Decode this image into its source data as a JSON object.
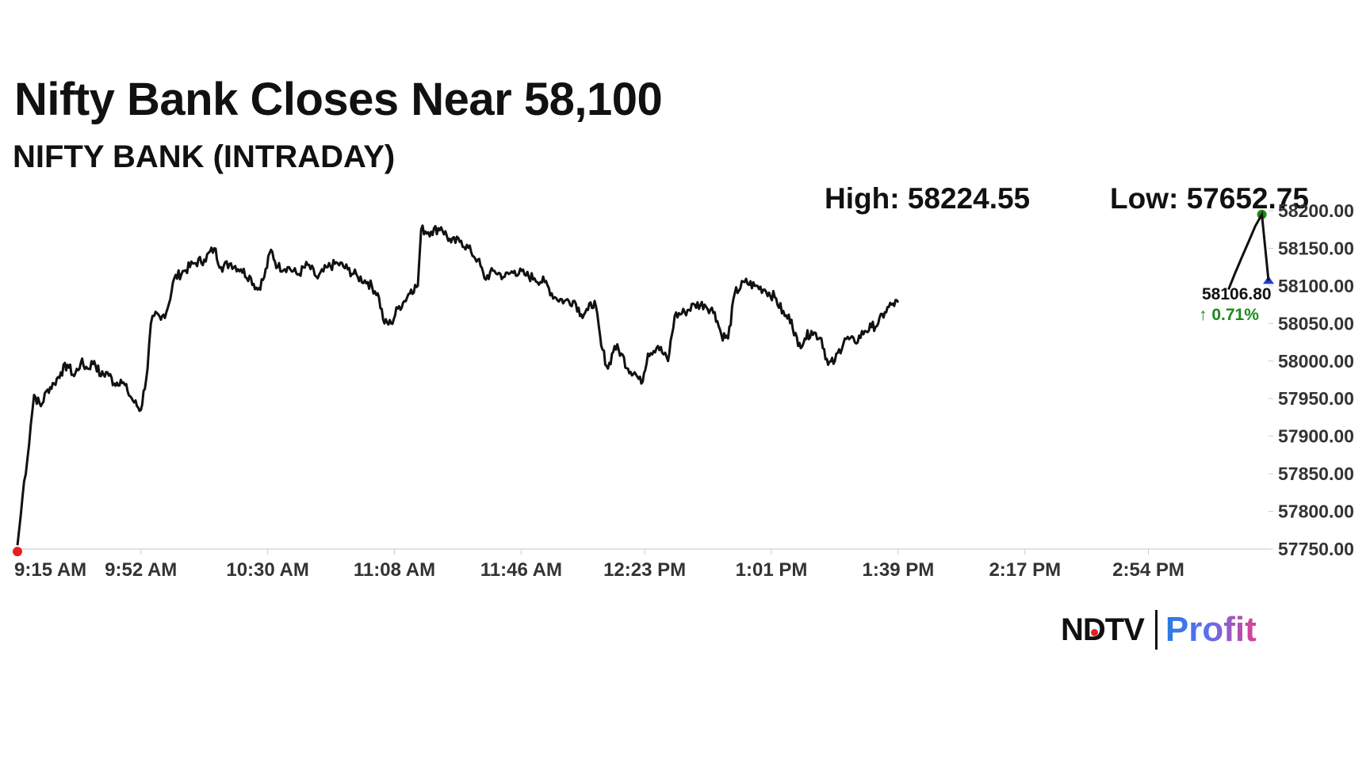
{
  "headline": "Nifty Bank Closes Near 58,100",
  "subheadline": "NIFTY BANK (INTRADAY)",
  "stats": {
    "high": "High: 58224.55",
    "low": "Low: 57652.75"
  },
  "logo": {
    "left": "NDTV",
    "right": "Profit"
  },
  "colors": {
    "line": "#111111",
    "start_marker": "#e52020",
    "high_marker": "#1a8a1a",
    "last_marker": "#1f3fd6",
    "change_text": "#1a8a1a"
  },
  "chart_data": {
    "type": "line",
    "title": "NIFTY BANK (INTRADAY)",
    "xlabel": "",
    "ylabel": "",
    "x_ticks": [
      "9:15 AM",
      "9:52 AM",
      "10:30 AM",
      "11:08 AM",
      "11:46 AM",
      "12:23 PM",
      "1:01 PM",
      "1:39 PM",
      "2:17 PM",
      "2:54 PM"
    ],
    "x_tick_minutes": [
      555,
      592,
      630,
      668,
      706,
      743,
      781,
      819,
      857,
      894
    ],
    "y_ticks": [
      "57750.00",
      "57800.00",
      "57850.00",
      "57900.00",
      "57950.00",
      "58000.00",
      "58050.00",
      "58100.00",
      "58150.00",
      "58200.00"
    ],
    "ylim": [
      57750,
      58200
    ],
    "xlim": [
      "9:15 AM",
      "3:30 PM"
    ],
    "grid": false,
    "series": [
      {
        "points": [
          [
            "9:15 AM",
            57755
          ],
          [
            "9:16 AM",
            57795
          ],
          [
            "9:17 AM",
            57840
          ],
          [
            "9:18 AM",
            57870
          ],
          [
            "9:19 AM",
            57915
          ],
          [
            "9:20 AM",
            57955
          ],
          [
            "9:22 AM",
            57940
          ],
          [
            "9:24 AM",
            57962
          ],
          [
            "9:26 AM",
            57970
          ],
          [
            "9:28 AM",
            57985
          ],
          [
            "9:30 AM",
            57995
          ],
          [
            "9:32 AM",
            57980
          ],
          [
            "9:34 AM",
            57998
          ],
          [
            "9:36 AM",
            57990
          ],
          [
            "9:38 AM",
            58000
          ],
          [
            "9:40 AM",
            57980
          ],
          [
            "9:42 AM",
            57985
          ],
          [
            "9:44 AM",
            57970
          ],
          [
            "9:46 AM",
            57975
          ],
          [
            "9:48 AM",
            57960
          ],
          [
            "9:50 AM",
            57945
          ],
          [
            "9:52 AM",
            57935
          ],
          [
            "9:54 AM",
            57990
          ],
          [
            "9:55 AM",
            58050
          ],
          [
            "9:56 AM",
            58060
          ],
          [
            "9:58 AM",
            58055
          ],
          [
            "10:00 AM",
            58070
          ],
          [
            "10:02 AM",
            58110
          ],
          [
            "10:05 AM",
            58120
          ],
          [
            "10:08 AM",
            58130
          ],
          [
            "10:11 AM",
            58135
          ],
          [
            "10:14 AM",
            58150
          ],
          [
            "10:16 AM",
            58125
          ],
          [
            "10:19 AM",
            58130
          ],
          [
            "10:22 AM",
            58122
          ],
          [
            "10:25 AM",
            58110
          ],
          [
            "10:27 AM",
            58095
          ],
          [
            "10:29 AM",
            58112
          ],
          [
            "10:31 AM",
            58148
          ],
          [
            "10:33 AM",
            58125
          ],
          [
            "10:36 AM",
            58125
          ],
          [
            "10:39 AM",
            58115
          ],
          [
            "10:42 AM",
            58128
          ],
          [
            "10:45 AM",
            58110
          ],
          [
            "10:48 AM",
            58125
          ],
          [
            "10:51 AM",
            58130
          ],
          [
            "10:54 AM",
            58122
          ],
          [
            "10:57 AM",
            58112
          ],
          [
            "11:00 AM",
            58105
          ],
          [
            "11:03 AM",
            58090
          ],
          [
            "11:05 AM",
            58050
          ],
          [
            "11:07 AM",
            58050
          ],
          [
            "11:09 AM",
            58070
          ],
          [
            "11:11 AM",
            58080
          ],
          [
            "11:13 AM",
            58095
          ],
          [
            "11:15 AM",
            58100
          ],
          [
            "11:16 AM",
            58175
          ],
          [
            "11:19 AM",
            58172
          ],
          [
            "11:22 AM",
            58178
          ],
          [
            "11:25 AM",
            58158
          ],
          [
            "11:28 AM",
            58160
          ],
          [
            "11:31 AM",
            58145
          ],
          [
            "11:33 AM",
            58135
          ],
          [
            "11:35 AM",
            58110
          ],
          [
            "11:38 AM",
            58120
          ],
          [
            "11:41 AM",
            58112
          ],
          [
            "11:44 AM",
            58120
          ],
          [
            "11:47 AM",
            58115
          ],
          [
            "11:50 AM",
            58110
          ],
          [
            "11:53 AM",
            58105
          ],
          [
            "11:56 AM",
            58085
          ],
          [
            "11:59 AM",
            58080
          ],
          [
            "12:02 PM",
            58080
          ],
          [
            "12:04 PM",
            58062
          ],
          [
            "12:06 PM",
            58068
          ],
          [
            "12:08 PM",
            58080
          ],
          [
            "12:10 PM",
            58020
          ],
          [
            "12:12 PM",
            57990
          ],
          [
            "12:14 PM",
            58020
          ],
          [
            "12:16 PM",
            58010
          ],
          [
            "12:18 PM",
            57990
          ],
          [
            "12:20 PM",
            57985
          ],
          [
            "12:22 PM",
            57970
          ],
          [
            "12:24 PM",
            58010
          ],
          [
            "12:27 PM",
            58020
          ],
          [
            "12:30 PM",
            58000
          ],
          [
            "12:32 PM",
            58060
          ],
          [
            "12:35 PM",
            58065
          ],
          [
            "12:38 PM",
            58075
          ],
          [
            "12:41 PM",
            58075
          ],
          [
            "12:44 PM",
            58065
          ],
          [
            "12:46 PM",
            58035
          ],
          [
            "12:48 PM",
            58030
          ],
          [
            "12:50 PM",
            58090
          ],
          [
            "12:53 PM",
            58105
          ],
          [
            "12:56 PM",
            58100
          ],
          [
            "12:59 PM",
            58095
          ],
          [
            "1:02 PM",
            58085
          ],
          [
            "1:05 PM",
            58060
          ],
          [
            "1:07 PM",
            58055
          ],
          [
            "1:09 PM",
            58020
          ],
          [
            "1:11 PM",
            58030
          ],
          [
            "1:13 PM",
            58040
          ],
          [
            "1:16 PM",
            58030
          ],
          [
            "1:18 PM",
            57995
          ],
          [
            "1:20 PM",
            58000
          ],
          [
            "1:23 PM",
            58030
          ],
          [
            "1:26 PM",
            58025
          ],
          [
            "1:29 PM",
            58040
          ],
          [
            "1:31 PM",
            58045
          ],
          [
            "1:33 PM",
            58050
          ],
          [
            "1:35 PM",
            58065
          ],
          [
            "1:37 PM",
            58075
          ],
          [
            "1:39 PM",
            58078
          ]
        ]
      }
    ],
    "annotations": {
      "last_value": "58106.80",
      "change": "0.71%",
      "change_arrow": "up"
    }
  }
}
